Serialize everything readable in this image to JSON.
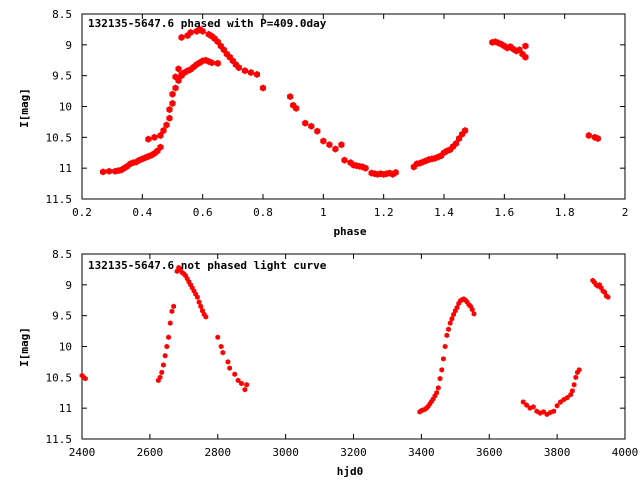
{
  "chart_data": [
    {
      "type": "scatter",
      "title": "132135-5647.6 phased with P=409.0day",
      "xlabel": "phase",
      "ylabel": "I[mag]",
      "xlim": [
        0.2,
        2.0
      ],
      "ylim": [
        11.5,
        8.5
      ],
      "y_inverted": true,
      "grid": false,
      "legend": "none",
      "marker_color": "#ff0000",
      "marker": "filled-hexagon",
      "x_ticks": [
        "0.2",
        "0.4",
        "0.6",
        "0.8",
        "1",
        "1.2",
        "1.4",
        "1.6",
        "1.8",
        "2"
      ],
      "y_ticks": [
        "8.5",
        "9",
        "9.5",
        "10",
        "10.5",
        "11",
        "11.5"
      ],
      "points": [
        [
          0.27,
          11.06
        ],
        [
          0.29,
          11.05
        ],
        [
          0.31,
          11.05
        ],
        [
          0.32,
          11.04
        ],
        [
          0.33,
          11.03
        ],
        [
          0.34,
          11.0
        ],
        [
          0.35,
          10.97
        ],
        [
          0.36,
          10.93
        ],
        [
          0.37,
          10.91
        ],
        [
          0.38,
          10.9
        ],
        [
          0.39,
          10.87
        ],
        [
          0.4,
          10.85
        ],
        [
          0.41,
          10.83
        ],
        [
          0.42,
          10.81
        ],
        [
          0.43,
          10.79
        ],
        [
          0.44,
          10.76
        ],
        [
          0.45,
          10.72
        ],
        [
          0.46,
          10.66
        ],
        [
          0.42,
          10.53
        ],
        [
          0.44,
          10.5
        ],
        [
          0.46,
          10.47
        ],
        [
          0.47,
          10.39
        ],
        [
          0.48,
          10.3
        ],
        [
          0.49,
          10.19
        ],
        [
          0.49,
          10.05
        ],
        [
          0.5,
          9.95
        ],
        [
          0.5,
          9.8
        ],
        [
          0.51,
          9.7
        ],
        [
          0.52,
          9.58
        ],
        [
          0.53,
          9.5
        ],
        [
          0.54,
          9.45
        ],
        [
          0.55,
          9.42
        ],
        [
          0.56,
          9.4
        ],
        [
          0.57,
          9.36
        ],
        [
          0.58,
          9.32
        ],
        [
          0.59,
          9.29
        ],
        [
          0.6,
          9.26
        ],
        [
          0.61,
          9.25
        ],
        [
          0.62,
          9.27
        ],
        [
          0.63,
          9.29
        ],
        [
          0.65,
          9.3
        ],
        [
          0.52,
          9.39
        ],
        [
          0.53,
          9.48
        ],
        [
          0.51,
          9.52
        ],
        [
          0.53,
          8.88
        ],
        [
          0.55,
          8.85
        ],
        [
          0.56,
          8.8
        ],
        [
          0.58,
          8.78
        ],
        [
          0.59,
          8.75
        ],
        [
          0.6,
          8.78
        ],
        [
          0.62,
          8.83
        ],
        [
          0.63,
          8.86
        ],
        [
          0.64,
          8.9
        ],
        [
          0.65,
          8.95
        ],
        [
          0.66,
          9.02
        ],
        [
          0.67,
          9.08
        ],
        [
          0.68,
          9.15
        ],
        [
          0.69,
          9.2
        ],
        [
          0.7,
          9.26
        ],
        [
          0.71,
          9.32
        ],
        [
          0.72,
          9.37
        ],
        [
          0.74,
          9.42
        ],
        [
          0.76,
          9.45
        ],
        [
          0.78,
          9.48
        ],
        [
          0.8,
          9.7
        ],
        [
          0.89,
          9.84
        ],
        [
          0.9,
          9.98
        ],
        [
          0.91,
          10.03
        ],
        [
          0.94,
          10.27
        ],
        [
          0.96,
          10.32
        ],
        [
          0.98,
          10.4
        ],
        [
          1.0,
          10.56
        ],
        [
          1.02,
          10.62
        ],
        [
          1.04,
          10.69
        ],
        [
          1.06,
          10.62
        ],
        [
          1.07,
          10.87
        ],
        [
          1.09,
          10.91
        ],
        [
          1.1,
          10.95
        ],
        [
          1.11,
          10.96
        ],
        [
          1.12,
          10.97
        ],
        [
          1.13,
          10.98
        ],
        [
          1.14,
          11.0
        ],
        [
          1.16,
          11.08
        ],
        [
          1.17,
          11.09
        ],
        [
          1.18,
          11.1
        ],
        [
          1.19,
          11.09
        ],
        [
          1.2,
          11.1
        ],
        [
          1.21,
          11.09
        ],
        [
          1.22,
          11.08
        ],
        [
          1.23,
          11.1
        ],
        [
          1.24,
          11.07
        ],
        [
          1.3,
          10.98
        ],
        [
          1.31,
          10.93
        ],
        [
          1.32,
          10.92
        ],
        [
          1.33,
          10.9
        ],
        [
          1.34,
          10.88
        ],
        [
          1.35,
          10.86
        ],
        [
          1.36,
          10.85
        ],
        [
          1.37,
          10.84
        ],
        [
          1.38,
          10.82
        ],
        [
          1.39,
          10.8
        ],
        [
          1.4,
          10.75
        ],
        [
          1.41,
          10.72
        ],
        [
          1.42,
          10.7
        ],
        [
          1.43,
          10.65
        ],
        [
          1.44,
          10.6
        ],
        [
          1.45,
          10.52
        ],
        [
          1.46,
          10.45
        ],
        [
          1.47,
          10.39
        ],
        [
          1.56,
          8.96
        ],
        [
          1.57,
          8.95
        ],
        [
          1.58,
          8.97
        ],
        [
          1.59,
          8.99
        ],
        [
          1.6,
          9.02
        ],
        [
          1.61,
          9.05
        ],
        [
          1.62,
          9.03
        ],
        [
          1.63,
          9.07
        ],
        [
          1.64,
          9.1
        ],
        [
          1.65,
          9.08
        ],
        [
          1.66,
          9.15
        ],
        [
          1.67,
          9.2
        ],
        [
          1.67,
          9.02
        ],
        [
          1.88,
          10.47
        ],
        [
          1.9,
          10.5
        ],
        [
          1.91,
          10.52
        ]
      ]
    },
    {
      "type": "scatter",
      "title": "132135-5647.6 not phased light curve",
      "xlabel": "hjd0",
      "ylabel": "I[mag]",
      "xlim": [
        2400,
        4000
      ],
      "ylim": [
        11.5,
        8.5
      ],
      "y_inverted": true,
      "grid": false,
      "legend": "none",
      "marker_color": "#ff0000",
      "marker": "filled-hexagon",
      "x_ticks": [
        "2400",
        "2600",
        "2800",
        "3000",
        "3200",
        "3400",
        "3600",
        "3800",
        "4000"
      ],
      "y_ticks": [
        "8.5",
        "9",
        "9.5",
        "10",
        "10.5",
        "11",
        "11.5"
      ],
      "points": [
        [
          2400,
          10.47
        ],
        [
          2405,
          10.5
        ],
        [
          2410,
          10.52
        ],
        [
          2625,
          10.55
        ],
        [
          2630,
          10.5
        ],
        [
          2635,
          10.42
        ],
        [
          2640,
          10.3
        ],
        [
          2645,
          10.15
        ],
        [
          2650,
          10.0
        ],
        [
          2655,
          9.85
        ],
        [
          2660,
          9.62
        ],
        [
          2665,
          9.43
        ],
        [
          2670,
          9.35
        ],
        [
          2680,
          8.78
        ],
        [
          2685,
          8.72
        ],
        [
          2690,
          8.75
        ],
        [
          2695,
          8.8
        ],
        [
          2700,
          8.82
        ],
        [
          2705,
          8.85
        ],
        [
          2710,
          8.9
        ],
        [
          2715,
          8.95
        ],
        [
          2720,
          9.0
        ],
        [
          2725,
          9.05
        ],
        [
          2730,
          9.1
        ],
        [
          2735,
          9.15
        ],
        [
          2740,
          9.2
        ],
        [
          2745,
          9.28
        ],
        [
          2750,
          9.35
        ],
        [
          2755,
          9.42
        ],
        [
          2760,
          9.48
        ],
        [
          2765,
          9.52
        ],
        [
          2800,
          9.85
        ],
        [
          2810,
          10.0
        ],
        [
          2815,
          10.1
        ],
        [
          2830,
          10.25
        ],
        [
          2835,
          10.35
        ],
        [
          2850,
          10.45
        ],
        [
          2860,
          10.55
        ],
        [
          2870,
          10.6
        ],
        [
          2880,
          10.7
        ],
        [
          2885,
          10.62
        ],
        [
          3395,
          11.06
        ],
        [
          3400,
          11.04
        ],
        [
          3405,
          11.03
        ],
        [
          3410,
          11.02
        ],
        [
          3415,
          11.0
        ],
        [
          3420,
          10.97
        ],
        [
          3425,
          10.93
        ],
        [
          3430,
          10.89
        ],
        [
          3435,
          10.85
        ],
        [
          3440,
          10.8
        ],
        [
          3445,
          10.75
        ],
        [
          3450,
          10.67
        ],
        [
          3455,
          10.52
        ],
        [
          3460,
          10.38
        ],
        [
          3465,
          10.2
        ],
        [
          3470,
          10.0
        ],
        [
          3475,
          9.82
        ],
        [
          3480,
          9.72
        ],
        [
          3485,
          9.62
        ],
        [
          3490,
          9.55
        ],
        [
          3495,
          9.48
        ],
        [
          3500,
          9.42
        ],
        [
          3505,
          9.37
        ],
        [
          3510,
          9.3
        ],
        [
          3515,
          9.26
        ],
        [
          3520,
          9.24
        ],
        [
          3525,
          9.23
        ],
        [
          3530,
          9.25
        ],
        [
          3535,
          9.28
        ],
        [
          3540,
          9.32
        ],
        [
          3545,
          9.35
        ],
        [
          3550,
          9.4
        ],
        [
          3555,
          9.47
        ],
        [
          3700,
          10.9
        ],
        [
          3710,
          10.95
        ],
        [
          3720,
          11.0
        ],
        [
          3730,
          10.98
        ],
        [
          3740,
          11.05
        ],
        [
          3750,
          11.08
        ],
        [
          3760,
          11.06
        ],
        [
          3770,
          11.1
        ],
        [
          3780,
          11.07
        ],
        [
          3790,
          11.05
        ],
        [
          3800,
          10.96
        ],
        [
          3810,
          10.9
        ],
        [
          3820,
          10.86
        ],
        [
          3830,
          10.83
        ],
        [
          3840,
          10.78
        ],
        [
          3845,
          10.72
        ],
        [
          3850,
          10.62
        ],
        [
          3855,
          10.5
        ],
        [
          3860,
          10.42
        ],
        [
          3865,
          10.38
        ],
        [
          3905,
          8.93
        ],
        [
          3910,
          8.96
        ],
        [
          3915,
          9.0
        ],
        [
          3920,
          9.02
        ],
        [
          3925,
          9.0
        ],
        [
          3930,
          9.05
        ],
        [
          3935,
          9.1
        ],
        [
          3940,
          9.12
        ],
        [
          3945,
          9.18
        ],
        [
          3950,
          9.2
        ]
      ]
    }
  ]
}
